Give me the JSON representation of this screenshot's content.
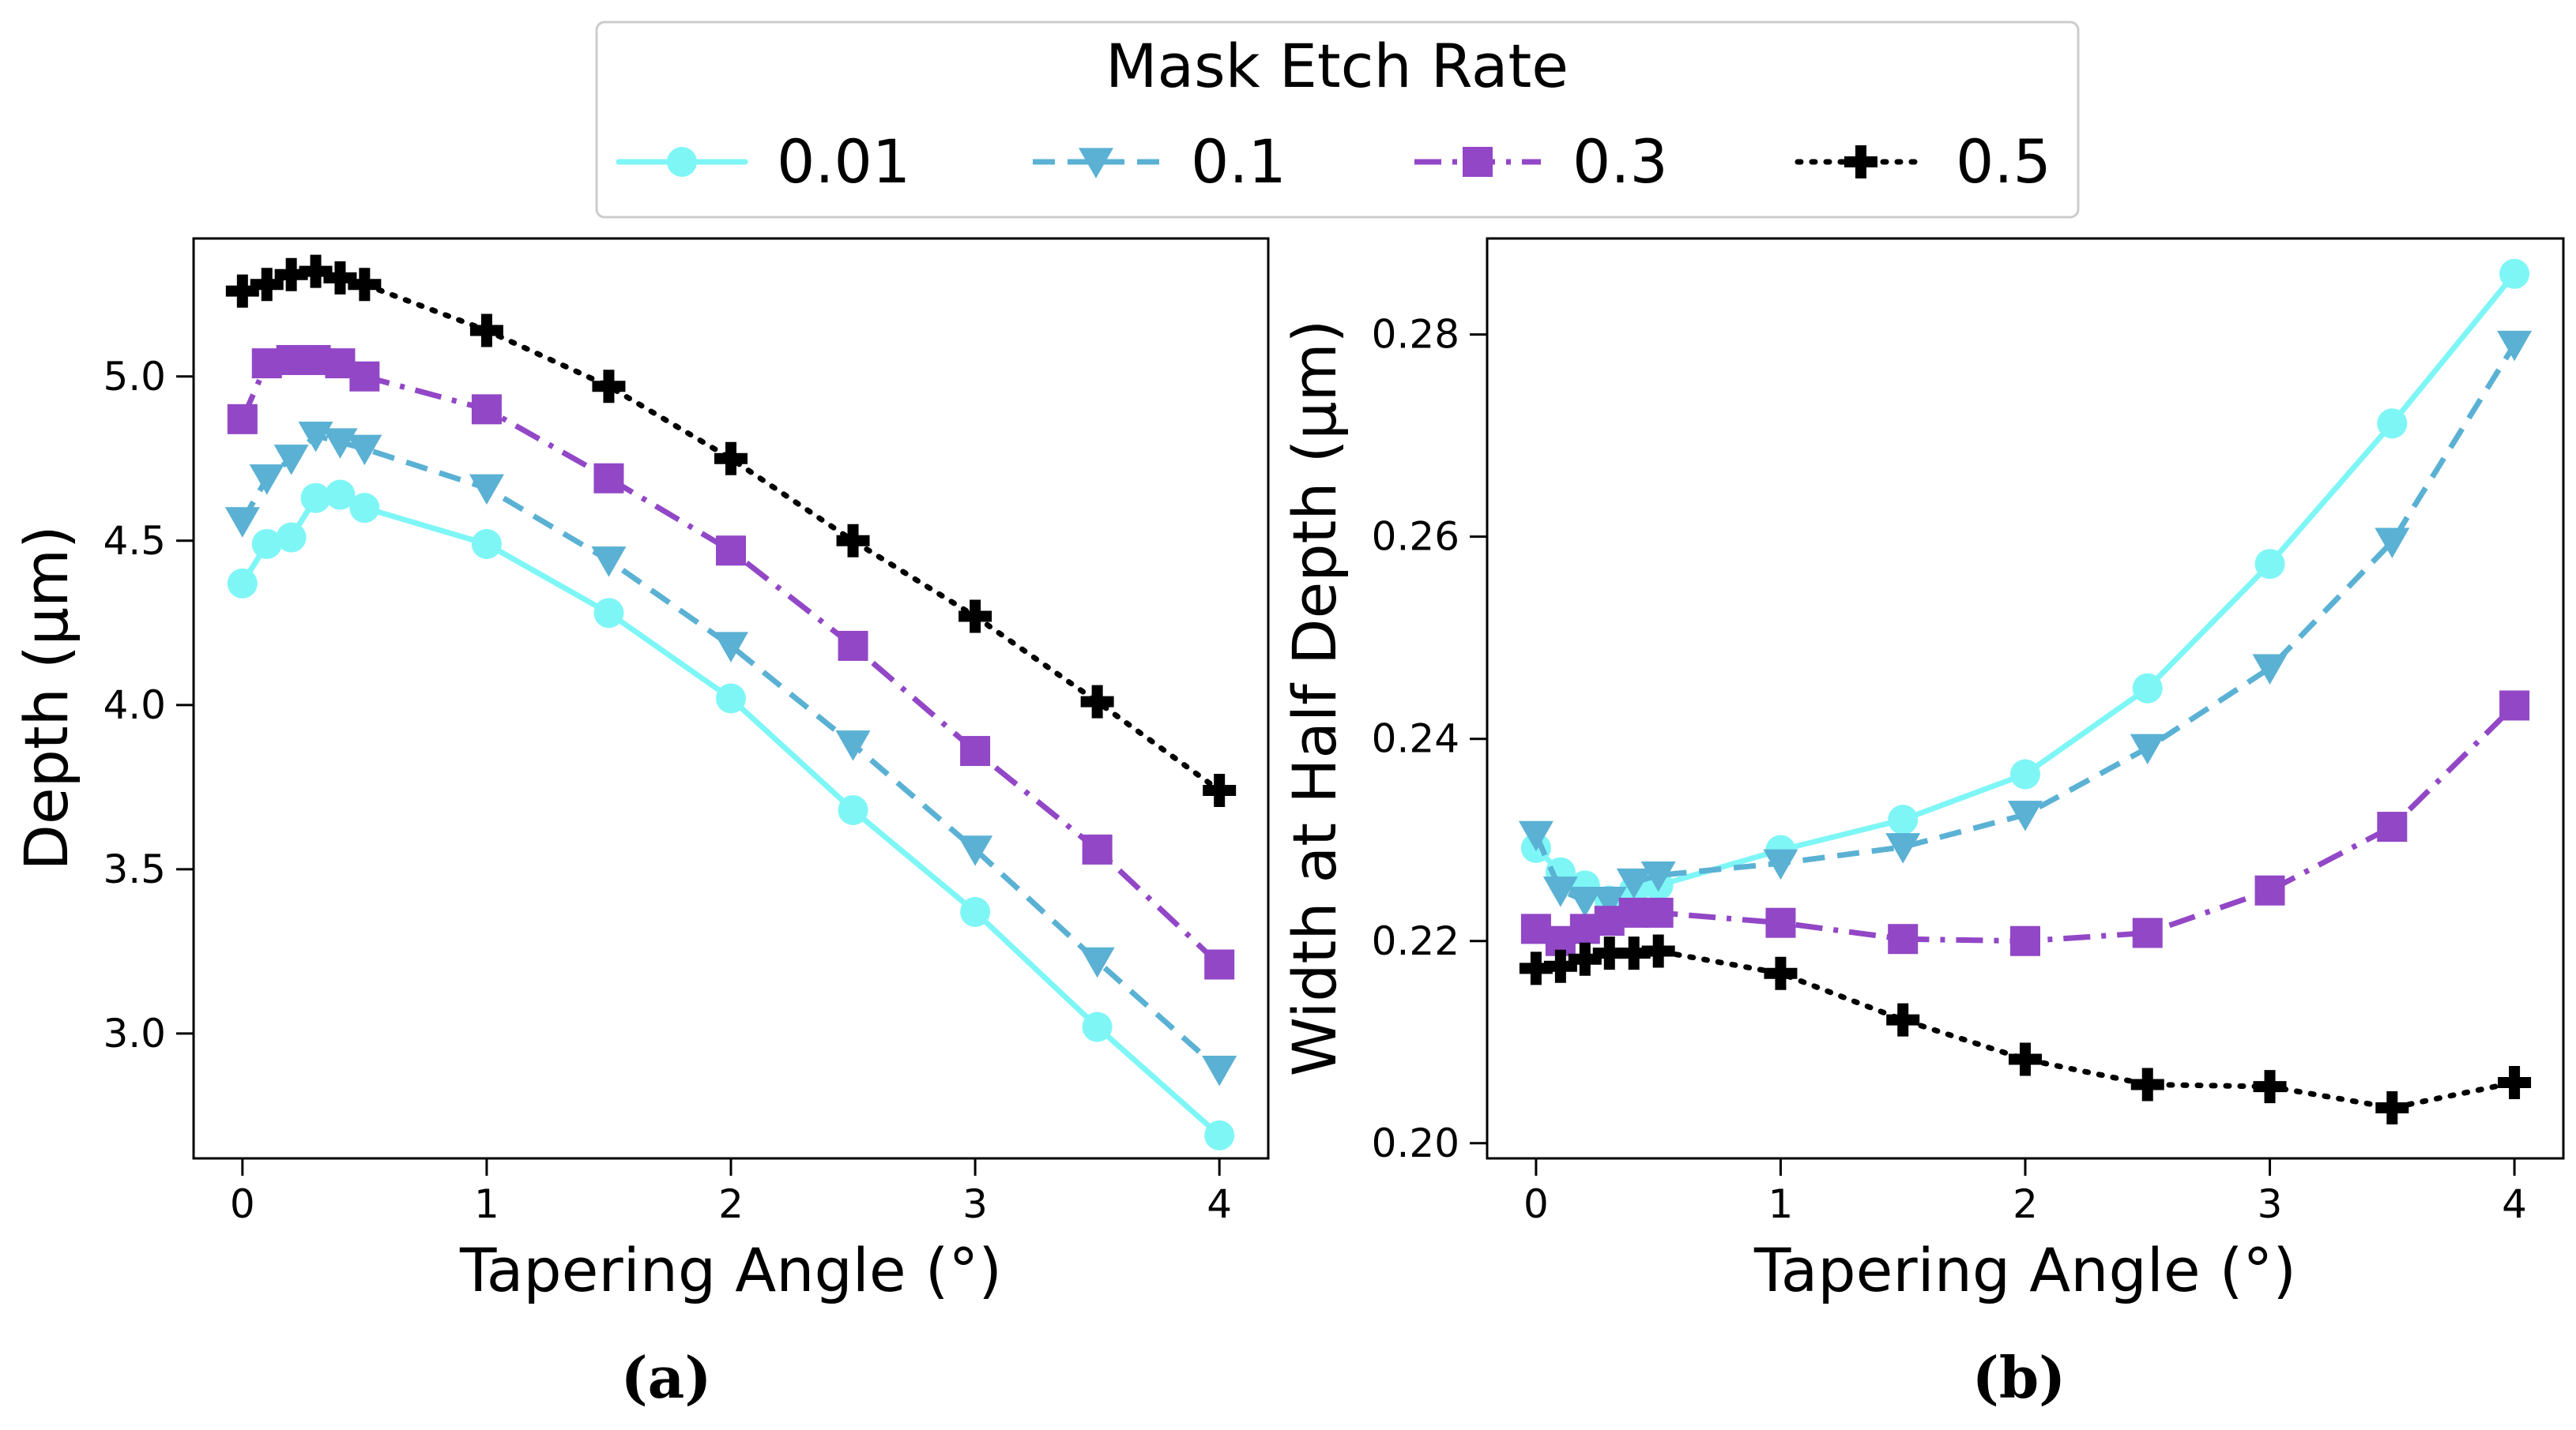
{
  "legend": {
    "title": "Mask Etch Rate",
    "entries": [
      "0.01",
      "0.1",
      "0.3",
      "0.5"
    ]
  },
  "colors": {
    "0.01": "#7ef6f6",
    "0.1": "#5ab1d4",
    "0.3": "#9247c6",
    "0.5": "#000000"
  },
  "chart_data": [
    {
      "type": "line",
      "caption": "(a)",
      "xlabel": "Tapering Angle (°)",
      "ylabel": "Depth (μm)",
      "xlim": [
        -0.2,
        4.2
      ],
      "ylim": [
        2.62,
        5.42
      ],
      "xticks": [
        0,
        1,
        2,
        3,
        4
      ],
      "xtick_labels": [
        "0",
        "1",
        "2",
        "3",
        "4"
      ],
      "yticks": [
        3.0,
        3.5,
        4.0,
        4.5,
        5.0
      ],
      "ytick_labels": [
        "3.0",
        "3.5",
        "4.0",
        "4.5",
        "5.0"
      ],
      "x": [
        0,
        0.1,
        0.2,
        0.3,
        0.4,
        0.5,
        1,
        1.5,
        2,
        2.5,
        3,
        3.5,
        4
      ],
      "series": [
        {
          "name": "0.01",
          "values": [
            4.37,
            4.49,
            4.51,
            4.63,
            4.64,
            4.6,
            4.49,
            4.28,
            4.02,
            3.68,
            3.37,
            3.02,
            2.69
          ]
        },
        {
          "name": "0.1",
          "values": [
            4.56,
            4.69,
            4.75,
            4.82,
            4.8,
            4.78,
            4.66,
            4.44,
            4.18,
            3.88,
            3.56,
            3.22,
            2.89
          ]
        },
        {
          "name": "0.3",
          "values": [
            4.87,
            5.04,
            5.05,
            5.05,
            5.04,
            5.0,
            4.9,
            4.69,
            4.47,
            4.18,
            3.86,
            3.56,
            3.21
          ]
        },
        {
          "name": "0.5",
          "values": [
            5.26,
            5.28,
            5.31,
            5.32,
            5.3,
            5.28,
            5.14,
            4.97,
            4.75,
            4.5,
            4.27,
            4.01,
            3.74
          ]
        }
      ]
    },
    {
      "type": "line",
      "caption": "(b)",
      "xlabel": "Tapering Angle (°)",
      "ylabel": "Width at Half Depth (μm)",
      "xlim": [
        -0.2,
        4.2
      ],
      "ylim": [
        0.1985,
        0.2895
      ],
      "xticks": [
        0,
        1,
        2,
        3,
        4
      ],
      "xtick_labels": [
        "0",
        "1",
        "2",
        "3",
        "4"
      ],
      "yticks": [
        0.2,
        0.22,
        0.24,
        0.26,
        0.28
      ],
      "ytick_labels": [
        "0.20",
        "0.22",
        "0.24",
        "0.26",
        "0.28"
      ],
      "x": [
        0,
        0.1,
        0.2,
        0.3,
        0.4,
        0.5,
        1,
        1.5,
        2,
        2.5,
        3,
        3.5,
        4
      ],
      "series": [
        {
          "name": "0.01",
          "values": [
            0.2292,
            0.2268,
            0.2255,
            0.224,
            0.225,
            0.2255,
            0.229,
            0.232,
            0.2365,
            0.245,
            0.2573,
            0.2712,
            0.286
          ]
        },
        {
          "name": "0.1",
          "values": [
            0.2305,
            0.225,
            0.224,
            0.224,
            0.2258,
            0.2265,
            0.2277,
            0.2293,
            0.2325,
            0.2391,
            0.247,
            0.2595,
            0.279
          ]
        },
        {
          "name": "0.3",
          "values": [
            0.2212,
            0.22,
            0.2212,
            0.222,
            0.2228,
            0.2228,
            0.2218,
            0.2202,
            0.22,
            0.2208,
            0.225,
            0.2313,
            0.2433
          ]
        },
        {
          "name": "0.5",
          "values": [
            0.2173,
            0.2175,
            0.2182,
            0.2188,
            0.2188,
            0.219,
            0.2168,
            0.2122,
            0.2083,
            0.2058,
            0.2056,
            0.2035,
            0.206
          ]
        }
      ]
    }
  ]
}
